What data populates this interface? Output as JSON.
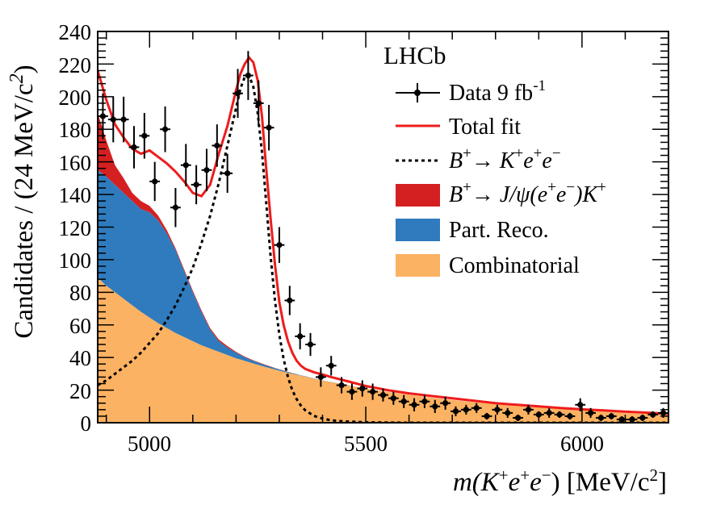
{
  "chart_data": {
    "type": "line",
    "experiment_label": "LHCb",
    "xlabel": {
      "pre": "m(K",
      "sup1": "+",
      "mid": "e",
      "sup2": "+",
      "mid2": "e",
      "sup3": "−",
      "post": ") [MeV/c",
      "sup4": "2",
      "end": "]"
    },
    "ylabel": {
      "pre": "Candidates / (24 MeV/c",
      "sup": "2",
      "post": ")"
    },
    "xlim": [
      4880,
      6200
    ],
    "ylim": [
      0,
      240
    ],
    "x_ticks": [
      5000,
      5500,
      6000
    ],
    "x_tick_labels": [
      "5000",
      "5500",
      "6000"
    ],
    "y_ticks": [
      0,
      20,
      40,
      60,
      80,
      100,
      120,
      140,
      160,
      180,
      200,
      220,
      240
    ],
    "y_tick_labels": [
      "0",
      "20",
      "40",
      "60",
      "80",
      "100",
      "120",
      "140",
      "160",
      "180",
      "200",
      "220",
      "240"
    ],
    "colors": {
      "data": "#000000",
      "total_fit": "#ee1c1c",
      "signal": "#000000",
      "jpsi": "#d42020",
      "part_reco": "#2f7bbd",
      "combinatorial": "#fbb262"
    },
    "legend": {
      "data": {
        "pre": "Data 9 fb",
        "sup": "-1"
      },
      "total_fit": "Total fit",
      "signal": {
        "b": "B",
        "b_sup": "+",
        "arrow": "→ ",
        "k": "K",
        "k_sup": "+",
        "e1": "e",
        "e1_sup": "+",
        "e2": "e",
        "e2_sup": "−"
      },
      "jpsi": {
        "b": "B",
        "b_sup": "+",
        "arrow": "→ ",
        "jpsi": "J/ψ(e",
        "e1_sup": "+",
        "e2": "e",
        "e2_sup": "−",
        "close": ")K",
        "k_sup": "+"
      },
      "part_reco": "Part. Reco.",
      "combinatorial": "Combinatorial"
    },
    "data_points": {
      "x": [
        4892,
        4916,
        4940,
        4964,
        4988,
        5012,
        5036,
        5060,
        5084,
        5108,
        5132,
        5156,
        5180,
        5204,
        5228,
        5252,
        5276,
        5300,
        5324,
        5348,
        5372,
        5396,
        5420,
        5444,
        5468,
        5492,
        5516,
        5540,
        5564,
        5588,
        5612,
        5636,
        5660,
        5684,
        5708,
        5732,
        5756,
        5780,
        5804,
        5828,
        5852,
        5876,
        5900,
        5924,
        5948,
        5972,
        5996,
        6020,
        6044,
        6068,
        6092,
        6116,
        6140,
        6164,
        6188
      ],
      "y": [
        188,
        186,
        186,
        169,
        176,
        148,
        180,
        132,
        158,
        146,
        155,
        170,
        153,
        202,
        213,
        196,
        181,
        109,
        75,
        53,
        48,
        28,
        35,
        23,
        19,
        21,
        19,
        17,
        15,
        13,
        11,
        13,
        10,
        12,
        7,
        8,
        9,
        4,
        8,
        6,
        3,
        8,
        5,
        6,
        5,
        4,
        11,
        6,
        3,
        4,
        2,
        2,
        3,
        5,
        6
      ],
      "yerr": [
        14,
        14,
        14,
        13,
        14,
        12,
        14,
        12,
        13,
        12,
        13,
        13,
        12,
        15,
        15,
        14,
        14,
        11,
        9,
        8,
        7,
        6,
        6,
        5,
        5,
        5,
        5,
        4,
        4,
        4,
        4,
        4,
        4,
        4,
        3,
        3,
        3,
        2,
        3,
        3,
        2,
        3,
        2,
        3,
        2,
        2,
        4,
        3,
        2,
        2,
        2,
        2,
        2,
        2,
        3
      ]
    },
    "curves_x": [
      4880,
      4900,
      4920,
      4940,
      4960,
      4980,
      5000,
      5020,
      5040,
      5060,
      5080,
      5100,
      5120,
      5140,
      5160,
      5180,
      5200,
      5210,
      5220,
      5230,
      5240,
      5250,
      5260,
      5270,
      5280,
      5290,
      5300,
      5310,
      5320,
      5330,
      5340,
      5350,
      5360,
      5380,
      5400,
      5420,
      5450,
      5500,
      5550,
      5600,
      5650,
      5700,
      5750,
      5800,
      5850,
      5900,
      5950,
      6000,
      6050,
      6100,
      6150,
      6200
    ],
    "combinatorial": [
      89,
      84,
      80,
      76,
      72,
      68,
      64.5,
      61,
      58,
      55,
      52.5,
      50,
      47.5,
      45.5,
      43.5,
      41.5,
      39.5,
      38.7,
      37.9,
      37.1,
      36.3,
      35.5,
      34.8,
      34,
      33.3,
      32.6,
      31.9,
      31.2,
      30.6,
      30,
      29.4,
      28.8,
      28.2,
      27,
      25.9,
      24.9,
      23.4,
      21,
      19,
      17.2,
      15.5,
      14,
      12.6,
      11.4,
      10.3,
      9.3,
      8.4,
      7.6,
      6.8,
      6.1,
      5.5,
      5
    ],
    "part_reco_top": [
      155,
      151,
      146,
      141,
      136,
      131,
      129,
      124,
      116,
      106,
      93,
      80,
      68,
      57,
      50,
      46,
      43,
      41.5,
      40.2,
      39,
      38,
      37,
      36,
      35.1,
      34.2,
      33.4,
      32.6,
      31.9,
      31.1,
      30.4,
      29.7,
      29,
      28.4,
      27.2,
      26,
      25,
      23.5,
      21,
      19,
      17.2,
      15.5,
      14,
      12.6,
      11.4,
      10.3,
      9.3,
      8.4,
      7.6,
      6.8,
      6.1,
      5.5,
      5
    ],
    "jpsi_top": [
      190,
      173,
      158,
      150,
      141,
      136,
      133,
      127,
      118,
      107,
      94,
      81,
      69,
      58,
      51,
      47,
      43.5,
      42,
      40.6,
      39.4,
      38.3,
      37.3,
      36.3,
      35.4,
      34.5,
      33.6,
      32.8,
      32,
      31.2,
      30.5,
      29.8,
      29.1,
      28.5,
      27.2,
      26,
      25,
      23.5,
      21,
      19,
      17.2,
      15.5,
      14,
      12.6,
      11.4,
      10.3,
      9.3,
      8.4,
      7.6,
      6.8,
      6.1,
      5.5,
      5
    ],
    "signal": [
      23,
      26,
      30,
      34,
      38,
      43,
      49,
      55,
      63,
      72,
      83,
      95,
      110,
      127,
      147,
      170,
      193,
      205,
      212,
      213,
      206,
      190,
      166,
      134,
      102,
      75,
      54,
      39,
      28,
      20,
      14.5,
      10.5,
      7.6,
      4.2,
      2.5,
      1.5,
      0.8,
      0.3,
      0.1,
      0,
      0,
      0,
      0,
      0,
      0,
      0,
      0,
      0,
      0,
      0,
      0,
      0
    ],
    "total_fit": [
      216,
      198,
      183,
      175,
      168,
      165,
      167,
      163,
      159,
      154,
      148,
      141,
      139,
      146,
      165,
      182,
      204,
      214,
      220,
      224,
      221,
      210,
      188,
      155,
      125,
      97,
      74,
      60,
      50,
      43,
      38,
      35,
      33,
      31,
      29.6,
      28,
      26,
      22.5,
      20,
      18,
      16.5,
      15,
      13.5,
      12,
      11,
      10,
      9,
      8.2,
      7.5,
      6.8,
      6.2,
      5.5
    ]
  }
}
